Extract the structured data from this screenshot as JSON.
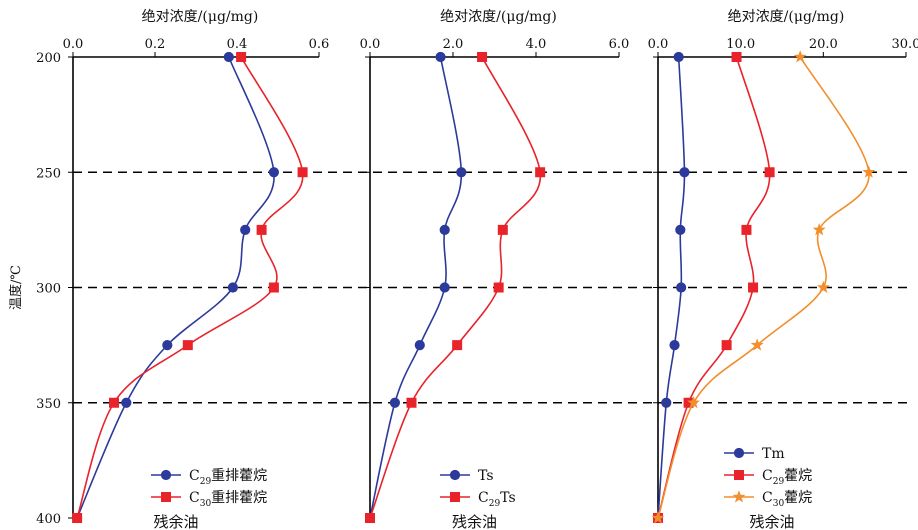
{
  "chart_data": {
    "type": "line",
    "ylabel": "温度/℃",
    "y_ticks": [
      200,
      250,
      300,
      350,
      400
    ],
    "ylim": [
      200,
      400
    ],
    "reference_lines": [
      250,
      300,
      350
    ],
    "colors": {
      "blue": "#2b3a9b",
      "red": "#e8232a",
      "orange": "#f28e2b"
    },
    "panels": [
      {
        "title": "绝对浓度/(μg/mg)",
        "caption": "残余油",
        "xlim": [
          0,
          0.6
        ],
        "x_ticks": [
          "0.0",
          "0.2",
          "0.4",
          "0.6"
        ],
        "y": [
          200,
          250,
          275,
          300,
          325,
          350,
          400
        ],
        "series": [
          {
            "base": "C",
            "sub": "29",
            "suffix": "重排藿烷",
            "marker": "circle",
            "color": "#2b3a9b",
            "x": [
              0.38,
              0.49,
              0.42,
              0.39,
              0.23,
              0.13,
              0.01
            ]
          },
          {
            "base": "C",
            "sub": "30",
            "suffix": "重排藿烷",
            "marker": "square",
            "color": "#e8232a",
            "x": [
              0.41,
              0.56,
              0.46,
              0.49,
              0.28,
              0.1,
              0.01
            ]
          }
        ]
      },
      {
        "title": "绝对浓度/(μg/mg)",
        "caption": "残余油",
        "xlim": [
          0,
          6.0
        ],
        "x_ticks": [
          "0.0",
          "2.0",
          "4.0",
          "6.0"
        ],
        "y": [
          200,
          250,
          275,
          300,
          325,
          350,
          400
        ],
        "series": [
          {
            "base": "Ts",
            "sub": "",
            "suffix": "",
            "marker": "circle",
            "color": "#2b3a9b",
            "x": [
              1.7,
              2.2,
              1.8,
              1.8,
              1.2,
              0.6,
              0.0
            ]
          },
          {
            "base": "C",
            "sub": "29",
            "suffix": "Ts",
            "marker": "square",
            "color": "#e8232a",
            "x": [
              2.7,
              4.1,
              3.2,
              3.1,
              2.1,
              1.0,
              0.0
            ]
          }
        ]
      },
      {
        "title": "绝对浓度/(μg/mg)",
        "caption": "残余油",
        "xlim": [
          0,
          30.0
        ],
        "x_ticks": [
          "0.0",
          "10.0",
          "20.0",
          "30.0"
        ],
        "y": [
          200,
          250,
          275,
          300,
          325,
          350,
          400
        ],
        "series": [
          {
            "base": "Tm",
            "sub": "",
            "suffix": "",
            "marker": "circle",
            "color": "#2b3a9b",
            "x": [
              2.5,
              3.2,
              2.7,
              2.8,
              2.0,
              1.0,
              0.0
            ]
          },
          {
            "base": "C",
            "sub": "29",
            "suffix": "藿烷",
            "marker": "square",
            "color": "#e8232a",
            "x": [
              9.5,
              13.5,
              10.7,
              11.5,
              8.3,
              3.7,
              0.0
            ]
          },
          {
            "base": "C",
            "sub": "30",
            "suffix": "藿烷",
            "marker": "star",
            "color": "#f28e2b",
            "x": [
              17.2,
              25.5,
              19.5,
              20.0,
              12.0,
              4.3,
              0.0
            ]
          }
        ]
      }
    ]
  }
}
